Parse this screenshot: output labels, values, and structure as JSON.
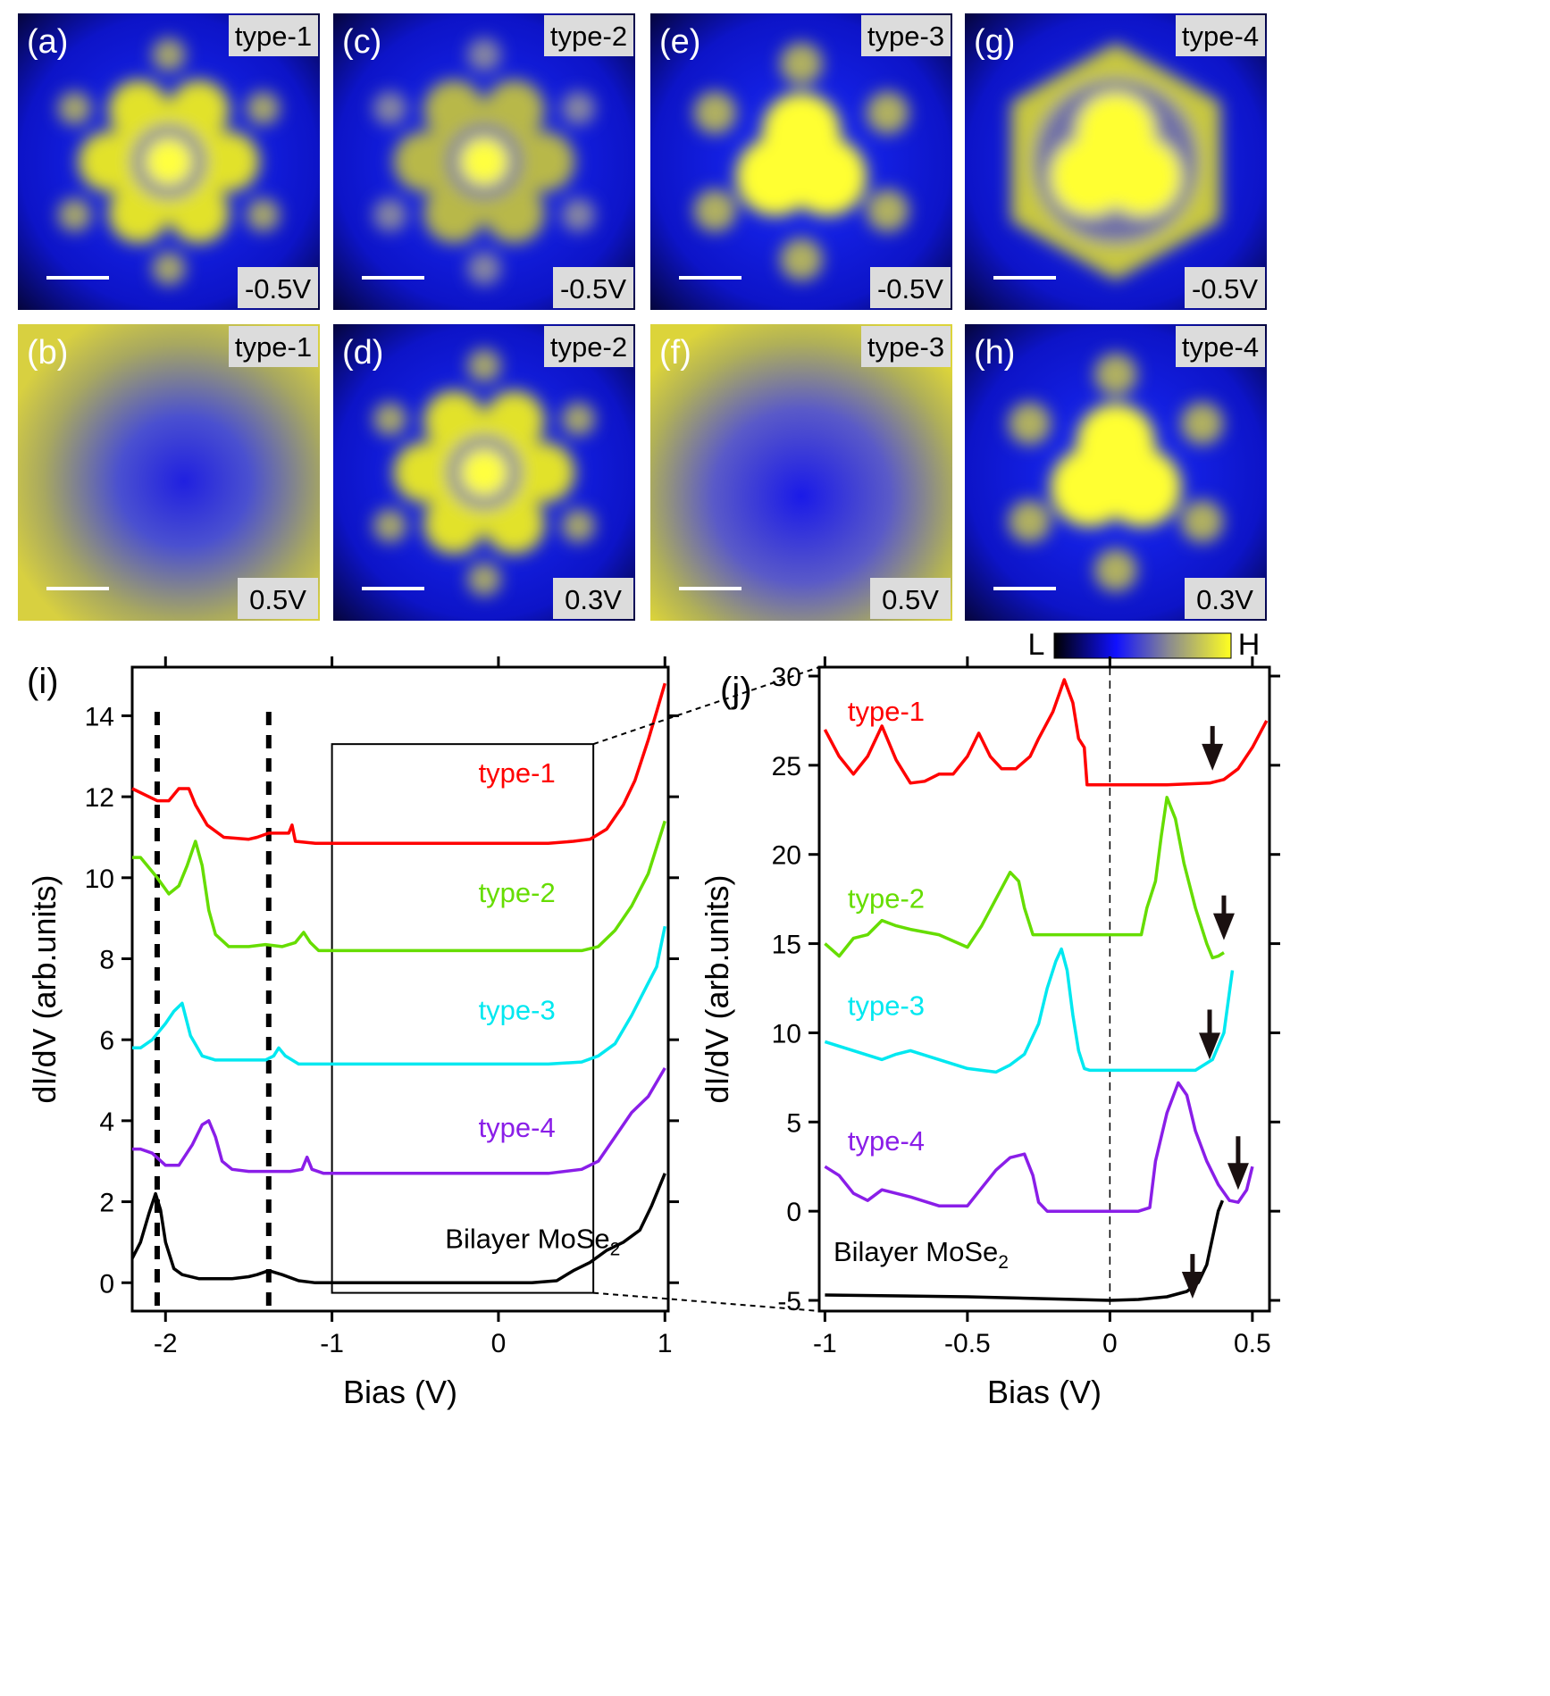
{
  "colors": {
    "type1": "#ff0000",
    "type2": "#66dd00",
    "type3": "#00e8f0",
    "type4": "#8a1ee8",
    "bilayer": "#000000",
    "map_low": "#000000",
    "map_mid": "#1010ff",
    "map_high": "#ffff20"
  },
  "colorbar": {
    "low_label": "L",
    "high_label": "H"
  },
  "panels": [
    {
      "letter": "(a)",
      "type": "type-1",
      "bias": "-0.5V",
      "pattern": "ring-dot"
    },
    {
      "letter": "(c)",
      "type": "type-2",
      "bias": "-0.5V",
      "pattern": "ring-dot-dim"
    },
    {
      "letter": "(e)",
      "type": "type-3",
      "bias": "-0.5V",
      "pattern": "trefoil"
    },
    {
      "letter": "(g)",
      "type": "type-4",
      "bias": "-0.5V",
      "pattern": "trefoil-large"
    },
    {
      "letter": "(b)",
      "type": "type-1",
      "bias": "0.5V",
      "pattern": "depression"
    },
    {
      "letter": "(d)",
      "type": "type-2",
      "bias": "0.3V",
      "pattern": "ring-dot"
    },
    {
      "letter": "(f)",
      "type": "type-3",
      "bias": "0.5V",
      "pattern": "depression-wide"
    },
    {
      "letter": "(h)",
      "type": "type-4",
      "bias": "0.3V",
      "pattern": "trefoil"
    }
  ],
  "chart_data": [
    {
      "panel": "(i)",
      "type": "line",
      "xlabel": "Bias (V)",
      "ylabel": "dI/dV (arb.units)",
      "xlim": [
        -2.2,
        1.02
      ],
      "ylim": [
        -0.7,
        15.2
      ],
      "xticks": [
        -2,
        -1,
        0,
        1
      ],
      "yticks": [
        0,
        2,
        4,
        6,
        8,
        10,
        12,
        14
      ],
      "dashed_vlines": [
        -2.05,
        -1.38
      ],
      "zoom_box": {
        "x": [
          -1.0,
          0.57
        ],
        "y": [
          -0.25,
          13.3
        ]
      },
      "series": [
        {
          "name": "type-1",
          "label_pos": [
            -0.12,
            12.35
          ],
          "x": [
            -2.2,
            -2.1,
            -2.05,
            -1.98,
            -1.92,
            -1.86,
            -1.82,
            -1.75,
            -1.65,
            -1.5,
            -1.45,
            -1.38,
            -1.32,
            -1.26,
            -1.24,
            -1.22,
            -1.1,
            -1.0,
            -0.5,
            0.0,
            0.3,
            0.45,
            0.55,
            0.65,
            0.75,
            0.82,
            0.9,
            0.95,
            1.0
          ],
          "y": [
            12.2,
            12.0,
            11.9,
            11.9,
            12.2,
            12.2,
            11.8,
            11.3,
            11.0,
            10.95,
            11.0,
            11.1,
            11.1,
            11.1,
            11.3,
            10.9,
            10.85,
            10.85,
            10.85,
            10.85,
            10.85,
            10.9,
            10.95,
            11.2,
            11.8,
            12.4,
            13.4,
            14.1,
            14.8
          ]
        },
        {
          "name": "type-2",
          "label_pos": [
            -0.12,
            9.4
          ],
          "x": [
            -2.2,
            -2.15,
            -2.05,
            -1.98,
            -1.92,
            -1.87,
            -1.82,
            -1.78,
            -1.74,
            -1.7,
            -1.62,
            -1.55,
            -1.5,
            -1.4,
            -1.3,
            -1.22,
            -1.17,
            -1.13,
            -1.08,
            -1.0,
            -0.5,
            0.0,
            0.3,
            0.5,
            0.6,
            0.7,
            0.8,
            0.9,
            1.0
          ],
          "y": [
            10.5,
            10.5,
            10.0,
            9.6,
            9.8,
            10.3,
            10.9,
            10.3,
            9.2,
            8.6,
            8.3,
            8.3,
            8.3,
            8.35,
            8.3,
            8.4,
            8.65,
            8.4,
            8.2,
            8.2,
            8.2,
            8.2,
            8.2,
            8.2,
            8.3,
            8.7,
            9.3,
            10.1,
            11.4
          ]
        },
        {
          "name": "type-3",
          "label_pos": [
            -0.12,
            6.5
          ],
          "x": [
            -2.2,
            -2.15,
            -2.08,
            -2.0,
            -1.95,
            -1.9,
            -1.85,
            -1.78,
            -1.7,
            -1.6,
            -1.5,
            -1.4,
            -1.35,
            -1.32,
            -1.28,
            -1.2,
            -1.1,
            -1.0,
            -0.5,
            0.0,
            0.3,
            0.5,
            0.6,
            0.7,
            0.8,
            0.9,
            0.95,
            1.0
          ],
          "y": [
            5.8,
            5.8,
            6.0,
            6.4,
            6.7,
            6.9,
            6.1,
            5.6,
            5.5,
            5.5,
            5.5,
            5.5,
            5.6,
            5.8,
            5.6,
            5.4,
            5.4,
            5.4,
            5.4,
            5.4,
            5.4,
            5.45,
            5.6,
            5.9,
            6.6,
            7.4,
            7.8,
            8.8
          ]
        },
        {
          "name": "type-4",
          "label_pos": [
            -0.12,
            3.6
          ],
          "x": [
            -2.2,
            -2.15,
            -2.08,
            -2.0,
            -1.92,
            -1.84,
            -1.78,
            -1.74,
            -1.7,
            -1.66,
            -1.6,
            -1.5,
            -1.35,
            -1.25,
            -1.18,
            -1.15,
            -1.12,
            -1.05,
            -1.0,
            -0.5,
            0.0,
            0.3,
            0.5,
            0.6,
            0.7,
            0.8,
            0.9,
            1.0
          ],
          "y": [
            3.3,
            3.3,
            3.2,
            2.9,
            2.9,
            3.4,
            3.9,
            4.0,
            3.6,
            3.0,
            2.8,
            2.75,
            2.75,
            2.75,
            2.8,
            3.1,
            2.8,
            2.7,
            2.7,
            2.7,
            2.7,
            2.7,
            2.8,
            3.0,
            3.6,
            4.2,
            4.6,
            5.3
          ]
        },
        {
          "name": "Bilayer MoSe2",
          "label_pos": [
            -0.32,
            0.85
          ],
          "x": [
            -2.2,
            -2.15,
            -2.1,
            -2.06,
            -2.03,
            -2.0,
            -1.95,
            -1.9,
            -1.8,
            -1.7,
            -1.6,
            -1.5,
            -1.45,
            -1.38,
            -1.3,
            -1.2,
            -1.1,
            -1.0,
            -0.5,
            0.0,
            0.2,
            0.35,
            0.45,
            0.55,
            0.65,
            0.75,
            0.85,
            0.92,
            1.0
          ],
          "y": [
            0.6,
            1.0,
            1.7,
            2.2,
            1.8,
            1.0,
            0.35,
            0.2,
            0.1,
            0.1,
            0.1,
            0.15,
            0.2,
            0.3,
            0.2,
            0.05,
            0.0,
            0.0,
            0.0,
            0.0,
            0.0,
            0.05,
            0.3,
            0.5,
            0.8,
            1.0,
            1.3,
            1.9,
            2.7
          ]
        }
      ]
    },
    {
      "panel": "(j)",
      "type": "line",
      "xlabel": "Bias (V)",
      "ylabel": "dI/dV (arb.units)",
      "xlim": [
        -1.02,
        0.56
      ],
      "ylim": [
        -5.6,
        30.5
      ],
      "xticks": [
        -1,
        -0.5,
        0,
        0.5
      ],
      "yticks": [
        -5,
        0,
        5,
        10,
        15,
        20,
        25,
        30
      ],
      "dashed_vlines": [
        0
      ],
      "series": [
        {
          "name": "type-1",
          "label_pos": [
            -0.92,
            27.5
          ],
          "arrow": {
            "x": 0.36,
            "top": 27.2,
            "tip": 24.7
          },
          "x": [
            -1.0,
            -0.95,
            -0.9,
            -0.85,
            -0.8,
            -0.75,
            -0.7,
            -0.65,
            -0.6,
            -0.55,
            -0.5,
            -0.46,
            -0.42,
            -0.38,
            -0.33,
            -0.28,
            -0.25,
            -0.2,
            -0.16,
            -0.13,
            -0.11,
            -0.09,
            -0.08,
            -0.05,
            0.0,
            0.2,
            0.35,
            0.4,
            0.45,
            0.5,
            0.55
          ],
          "y": [
            27.0,
            25.5,
            24.5,
            25.5,
            27.2,
            25.3,
            24.0,
            24.1,
            24.5,
            24.5,
            25.5,
            26.8,
            25.5,
            24.8,
            24.8,
            25.5,
            26.5,
            28.0,
            29.8,
            28.5,
            26.5,
            26.0,
            23.9,
            23.9,
            23.9,
            23.9,
            24.0,
            24.2,
            24.8,
            26.0,
            27.5
          ]
        },
        {
          "name": "type-2",
          "label_pos": [
            -0.92,
            17.0
          ],
          "arrow": {
            "x": 0.4,
            "top": 17.7,
            "tip": 15.2
          },
          "x": [
            -1.0,
            -0.95,
            -0.9,
            -0.85,
            -0.8,
            -0.75,
            -0.7,
            -0.6,
            -0.5,
            -0.45,
            -0.4,
            -0.35,
            -0.32,
            -0.3,
            -0.27,
            -0.25,
            -0.2,
            -0.1,
            0.0,
            0.05,
            0.11,
            0.13,
            0.16,
            0.18,
            0.2,
            0.23,
            0.26,
            0.3,
            0.34,
            0.36,
            0.38,
            0.4
          ],
          "y": [
            15.0,
            14.3,
            15.3,
            15.5,
            16.3,
            16.0,
            15.8,
            15.5,
            14.8,
            16.0,
            17.5,
            19.0,
            18.5,
            17.0,
            15.5,
            15.5,
            15.5,
            15.5,
            15.5,
            15.5,
            15.5,
            17.0,
            18.5,
            21.0,
            23.2,
            22.0,
            19.5,
            17.0,
            15.0,
            14.2,
            14.3,
            14.5
          ]
        },
        {
          "name": "type-3",
          "label_pos": [
            -0.92,
            11.0
          ],
          "arrow": {
            "x": 0.35,
            "top": 11.3,
            "tip": 8.5
          },
          "x": [
            -1.0,
            -0.9,
            -0.8,
            -0.75,
            -0.7,
            -0.6,
            -0.5,
            -0.4,
            -0.35,
            -0.3,
            -0.25,
            -0.22,
            -0.19,
            -0.17,
            -0.15,
            -0.13,
            -0.11,
            -0.09,
            -0.07,
            -0.05,
            0.0,
            0.2,
            0.3,
            0.36,
            0.4,
            0.43
          ],
          "y": [
            9.5,
            9.0,
            8.5,
            8.8,
            9.0,
            8.5,
            8.0,
            7.8,
            8.2,
            8.8,
            10.5,
            12.5,
            14.0,
            14.7,
            13.5,
            11.0,
            9.0,
            8.0,
            7.9,
            7.9,
            7.9,
            7.9,
            7.9,
            8.5,
            10.0,
            13.5
          ]
        },
        {
          "name": "type-4",
          "label_pos": [
            -0.92,
            3.4
          ],
          "arrow": {
            "x": 0.45,
            "top": 4.2,
            "tip": 1.2
          },
          "x": [
            -1.0,
            -0.95,
            -0.9,
            -0.85,
            -0.8,
            -0.75,
            -0.7,
            -0.6,
            -0.5,
            -0.45,
            -0.4,
            -0.35,
            -0.3,
            -0.27,
            -0.25,
            -0.22,
            -0.2,
            -0.1,
            0.0,
            0.1,
            0.14,
            0.16,
            0.2,
            0.24,
            0.27,
            0.3,
            0.34,
            0.38,
            0.42,
            0.45,
            0.48,
            0.5
          ],
          "y": [
            2.5,
            2.0,
            1.0,
            0.6,
            1.2,
            1.0,
            0.8,
            0.3,
            0.3,
            1.3,
            2.3,
            3.0,
            3.2,
            2.0,
            0.5,
            0.0,
            0.0,
            0.0,
            0.0,
            0.0,
            0.2,
            2.8,
            5.5,
            7.2,
            6.5,
            4.5,
            2.8,
            1.5,
            0.6,
            0.5,
            1.2,
            2.5
          ]
        },
        {
          "name": "Bilayer MoSe2",
          "label_pos": [
            -0.97,
            -2.8
          ],
          "arrow": {
            "x": 0.29,
            "top": -2.4,
            "tip": -4.9
          },
          "x": [
            -1.0,
            -0.5,
            0.0,
            0.1,
            0.2,
            0.27,
            0.31,
            0.34,
            0.36,
            0.38,
            0.395
          ],
          "y": [
            -4.7,
            -4.8,
            -5.0,
            -4.95,
            -4.8,
            -4.5,
            -4.0,
            -3.0,
            -1.5,
            0.0,
            0.6
          ]
        }
      ]
    }
  ]
}
